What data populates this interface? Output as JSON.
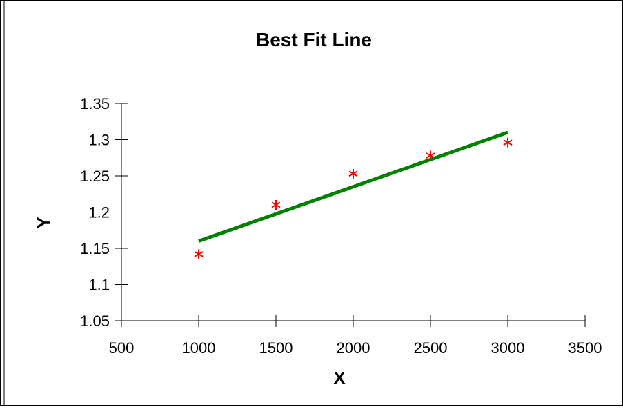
{
  "chart_data": {
    "type": "scatter",
    "title": "Best Fit Line",
    "xlabel": "X",
    "ylabel": "Y",
    "xlim": [
      500,
      3500
    ],
    "ylim": [
      1.05,
      1.35
    ],
    "xticks": [
      500,
      1000,
      1500,
      2000,
      2500,
      3000,
      3500
    ],
    "yticks": [
      1.05,
      1.1,
      1.15,
      1.2,
      1.25,
      1.3,
      1.35
    ],
    "xtick_labels": [
      "500",
      "1000",
      "1500",
      "2000",
      "2500",
      "3000",
      "3500"
    ],
    "ytick_labels": [
      "1.05",
      "1.1",
      "1.15",
      "1.2",
      "1.25",
      "1.3",
      "1.35"
    ],
    "grid": false,
    "legend": "none",
    "series": [
      {
        "type": "scatter",
        "marker": "asterisk",
        "color": "#ff0000",
        "x": [
          1000,
          1500,
          2000,
          2500,
          3000
        ],
        "y": [
          1.142,
          1.21,
          1.253,
          1.278,
          1.296
        ]
      },
      {
        "type": "line",
        "color": "#008000",
        "x": [
          1000,
          3000
        ],
        "y": [
          1.16,
          1.31
        ]
      }
    ]
  }
}
